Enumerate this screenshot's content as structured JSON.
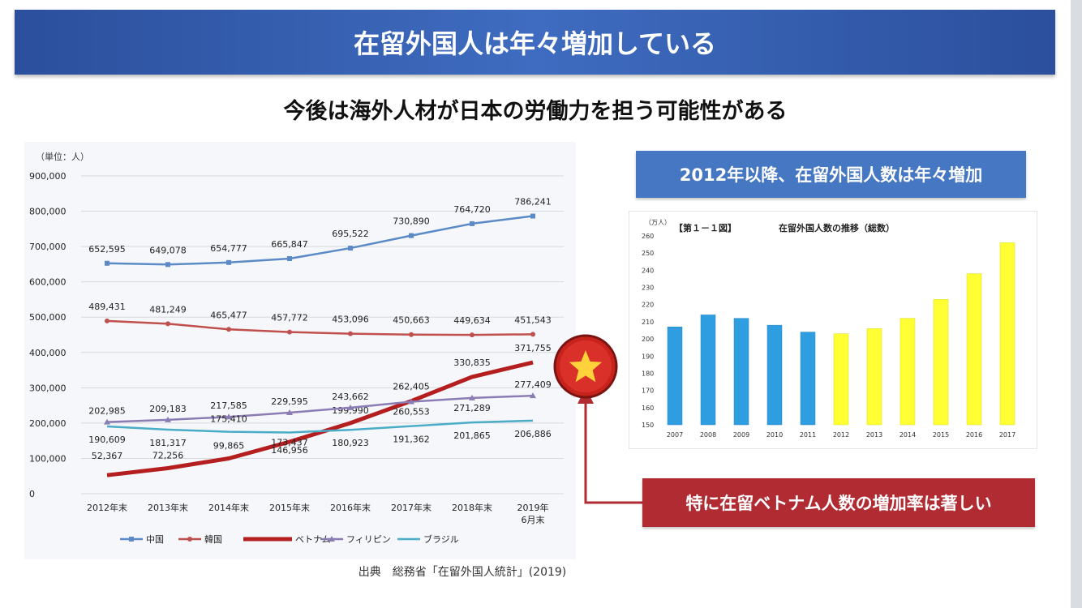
{
  "title": "在留外国人は年々増加している",
  "subtitle": "今後は海外人材が日本の労働力を担う可能性がある",
  "source": "出典　総務省「在留外国人統計」(2019)",
  "callout_blue": "2012年以降、在留外国人数は年々増加",
  "callout_red": "特に在留ベトナム人数の増加率は著しい",
  "colors": {
    "china": "#5b8ac7",
    "korea": "#c0504d",
    "vietnam": "#b41e1e",
    "philippines": "#8b7db4",
    "brazil": "#4aacc6",
    "bar_blue": "#2e9ee0",
    "bar_yellow": "#ffff33"
  },
  "icons": {
    "vietnam_badge": "vietnam-flag-star-icon"
  },
  "chart_data": [
    {
      "type": "line",
      "unit_label": "（単位：人）",
      "categories": [
        "2012年末",
        "2013年末",
        "2014年末",
        "2015年末",
        "2016年末",
        "2017年末",
        "2018年末",
        "2019年\n6月末"
      ],
      "ylim": [
        0,
        900000
      ],
      "yticks": [
        "900,000",
        "800,000",
        "700,000",
        "600,000",
        "500,000",
        "400,000",
        "300,000",
        "200,000",
        "100,000",
        "0"
      ],
      "grid": true,
      "legend_position": "bottom",
      "series": [
        {
          "name": "中国",
          "values": [
            652595,
            649078,
            654777,
            665847,
            695522,
            730890,
            764720,
            786241
          ],
          "labels": [
            "652,595",
            "649,078",
            "654,777",
            "665,847",
            "695,522",
            "730,890",
            "764,720",
            "786,241"
          ]
        },
        {
          "name": "韓国",
          "values": [
            489431,
            481249,
            465477,
            457772,
            453096,
            450663,
            449634,
            451543
          ],
          "labels": [
            "489,431",
            "481,249",
            "465,477",
            "457,772",
            "453,096",
            "450,663",
            "449,634",
            "451,543"
          ]
        },
        {
          "name": "ベトナム",
          "values": [
            52367,
            72256,
            99865,
            146956,
            199990,
            262405,
            330835,
            371755
          ],
          "labels": [
            "52,367",
            "72,256",
            "99,865",
            "146,956",
            "199,990",
            "262,405",
            "330,835",
            "371,755"
          ]
        },
        {
          "name": "フィリピン",
          "values": [
            202985,
            209183,
            217585,
            229595,
            243662,
            260553,
            271289,
            277409
          ],
          "labels": [
            "202,985",
            "209,183",
            "217,585",
            "229,595",
            "243,662",
            "260,553",
            "271,289",
            "277,409"
          ]
        },
        {
          "name": "ブラジル",
          "values": [
            190609,
            181317,
            175410,
            173437,
            180923,
            191362,
            201865,
            206886
          ],
          "labels": [
            "190,609",
            "181,317",
            "175,410",
            "173,437",
            "180,923",
            "191,362",
            "201,865",
            "206,886"
          ]
        }
      ]
    },
    {
      "type": "bar",
      "figure_label": "【第１－１図】",
      "title": "在留外国人数の推移（総数）",
      "unit_label": "（万人）",
      "categories": [
        "2007",
        "2008",
        "2009",
        "2010",
        "2011",
        "2012",
        "2013",
        "2014",
        "2015",
        "2016",
        "2017"
      ],
      "values": [
        207,
        214,
        212,
        208,
        204,
        203,
        206,
        212,
        223,
        238,
        256
      ],
      "highlight_from": "2012",
      "ylim": [
        150,
        260
      ],
      "yticks": [
        "260",
        "250",
        "240",
        "230",
        "220",
        "210",
        "200",
        "190",
        "180",
        "170",
        "160",
        "150"
      ],
      "grid": false
    }
  ]
}
